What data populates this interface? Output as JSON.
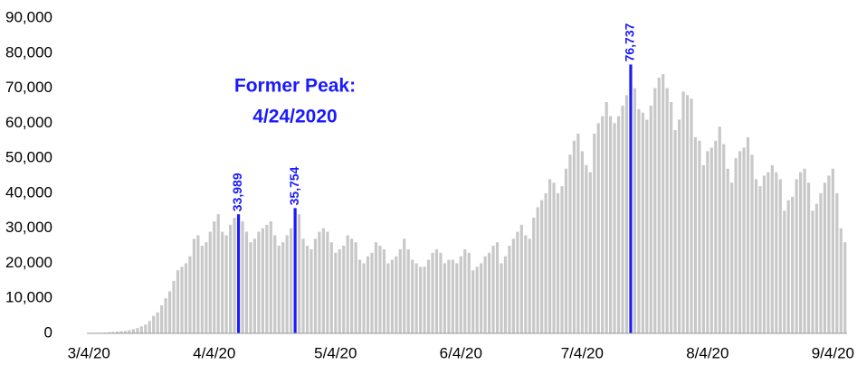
{
  "chart_data": {
    "type": "bar",
    "annotation": [
      "Former Peak:",
      "4/24/2020"
    ],
    "color": "#c8c8c8",
    "label_color": "#1a1aff",
    "ylim": [
      0,
      90000
    ],
    "yticks": [
      0,
      {
        "value": 10000,
        "label": "10,000"
      },
      {
        "value": 20000,
        "label": "20,000"
      },
      {
        "value": 30000,
        "label": "30,000"
      },
      {
        "value": 40000,
        "label": "40,000"
      },
      {
        "value": 50000,
        "label": "50,000"
      },
      {
        "value": 60000,
        "label": "60,000"
      },
      {
        "value": 70000,
        "label": "70,000"
      },
      {
        "value": 80000,
        "label": "80,000"
      },
      {
        "value": 90000,
        "label": "90,000"
      }
    ],
    "categories": [
      "3/4/20",
      null,
      null,
      null,
      null,
      null,
      null,
      null,
      null,
      null,
      null,
      null,
      null,
      null,
      null,
      null,
      null,
      null,
      null,
      null,
      null,
      null,
      null,
      null,
      null,
      null,
      null,
      null,
      null,
      null,
      null,
      "4/4/20",
      null,
      null,
      null,
      null,
      null,
      null,
      null,
      null,
      null,
      null,
      null,
      null,
      null,
      null,
      null,
      null,
      null,
      null,
      null,
      null,
      null,
      null,
      null,
      null,
      null,
      null,
      null,
      null,
      null,
      "5/4/20",
      null,
      null,
      null,
      null,
      null,
      null,
      null,
      null,
      null,
      null,
      null,
      null,
      null,
      null,
      null,
      null,
      null,
      null,
      null,
      null,
      null,
      null,
      null,
      null,
      null,
      null,
      null,
      null,
      null,
      null,
      "6/4/20",
      null,
      null,
      null,
      null,
      null,
      null,
      null,
      null,
      null,
      null,
      null,
      null,
      null,
      null,
      null,
      null,
      null,
      null,
      null,
      null,
      null,
      null,
      null,
      null,
      null,
      null,
      null,
      null,
      null,
      "7/4/20",
      null,
      null,
      null,
      null,
      null,
      null,
      null,
      null,
      null,
      null,
      null,
      null,
      null,
      null,
      null,
      null,
      null,
      null,
      null,
      null,
      null,
      null,
      null,
      null,
      null,
      null,
      null,
      null,
      null,
      null,
      "8/4/20",
      null,
      null,
      null,
      null,
      null,
      null,
      null,
      null,
      null,
      null,
      null,
      null,
      null,
      null,
      null,
      null,
      null,
      null,
      null,
      null,
      null,
      null,
      null,
      null,
      null,
      null,
      null,
      null,
      null,
      null,
      "9/4/20",
      null,
      null,
      null
    ],
    "values": [
      50,
      80,
      100,
      150,
      200,
      300,
      400,
      500,
      600,
      700,
      900,
      1200,
      1500,
      2000,
      2500,
      3500,
      5000,
      6000,
      8000,
      10000,
      12000,
      15000,
      18000,
      19000,
      20000,
      22000,
      27000,
      28000,
      25000,
      26000,
      29000,
      32000,
      34000,
      29000,
      28000,
      31000,
      33000,
      33989,
      32000,
      29000,
      26000,
      27000,
      29000,
      30000,
      31000,
      32000,
      28000,
      25000,
      26000,
      28000,
      30000,
      35754,
      34000,
      27000,
      25000,
      24000,
      27000,
      29000,
      30000,
      29000,
      26000,
      23000,
      24000,
      25000,
      28000,
      27000,
      26000,
      21000,
      20000,
      22000,
      23000,
      26000,
      25000,
      24000,
      20000,
      21000,
      22000,
      24000,
      27000,
      24000,
      21000,
      20000,
      19000,
      19000,
      21000,
      23000,
      24000,
      23000,
      20000,
      21000,
      21000,
      20000,
      22000,
      24000,
      23000,
      18000,
      19000,
      20000,
      22000,
      23000,
      25000,
      26000,
      20000,
      22000,
      25000,
      27000,
      29000,
      31000,
      28000,
      27000,
      33000,
      36000,
      38000,
      40000,
      44000,
      43000,
      40000,
      42000,
      47000,
      51000,
      55000,
      57000,
      52000,
      48000,
      46000,
      57000,
      60000,
      62000,
      66000,
      62000,
      60000,
      62000,
      65000,
      68000,
      76737,
      70000,
      64000,
      63000,
      61000,
      65000,
      70000,
      73000,
      74000,
      70000,
      66000,
      58000,
      61000,
      69000,
      68000,
      67000,
      56000,
      55000,
      48000,
      52000,
      53000,
      55000,
      59000,
      54000,
      47000,
      43000,
      50000,
      52000,
      53000,
      56000,
      51000,
      44000,
      42000,
      45000,
      46000,
      48000,
      46000,
      44000,
      35000,
      38000,
      39000,
      44000,
      46000,
      47000,
      43000,
      35000,
      37000,
      40000,
      43000,
      45000,
      47000,
      40000,
      30000,
      26000
    ],
    "value_labels": [
      null,
      null,
      null,
      null,
      null,
      null,
      null,
      null,
      null,
      null,
      null,
      null,
      null,
      null,
      null,
      null,
      null,
      null,
      null,
      null,
      null,
      null,
      null,
      null,
      null,
      null,
      null,
      null,
      null,
      null,
      null,
      null,
      null,
      null,
      null,
      null,
      null,
      "33,989",
      null,
      null,
      null,
      null,
      null,
      null,
      null,
      null,
      null,
      null,
      null,
      null,
      null,
      "35,754",
      null,
      null,
      null,
      null,
      null,
      null,
      null,
      null,
      null,
      null,
      null,
      null,
      null,
      null,
      null,
      null,
      null,
      null,
      null,
      null,
      null,
      null,
      null,
      null,
      null,
      null,
      null,
      null,
      null,
      null,
      null,
      null,
      null,
      null,
      null,
      null,
      null,
      null,
      null,
      null,
      null,
      null,
      null,
      null,
      null,
      null,
      null,
      null,
      null,
      null,
      null,
      null,
      null,
      null,
      null,
      null,
      null,
      null,
      null,
      null,
      null,
      null,
      null,
      null,
      null,
      null,
      null,
      null,
      null,
      null,
      null,
      null,
      null,
      null,
      null,
      null,
      null,
      null,
      null,
      null,
      null,
      null,
      "76,737",
      null,
      null,
      null,
      null,
      null,
      null,
      null,
      null,
      null,
      null,
      null,
      null,
      null,
      null,
      null,
      null,
      null,
      null,
      null,
      null,
      null,
      null,
      null,
      null,
      null,
      null,
      null,
      null,
      null,
      null,
      null,
      null,
      null,
      null,
      null,
      null,
      null,
      null,
      null,
      null,
      null,
      null,
      null,
      null,
      null,
      null,
      null,
      null,
      null,
      null,
      null,
      null,
      null
    ]
  }
}
